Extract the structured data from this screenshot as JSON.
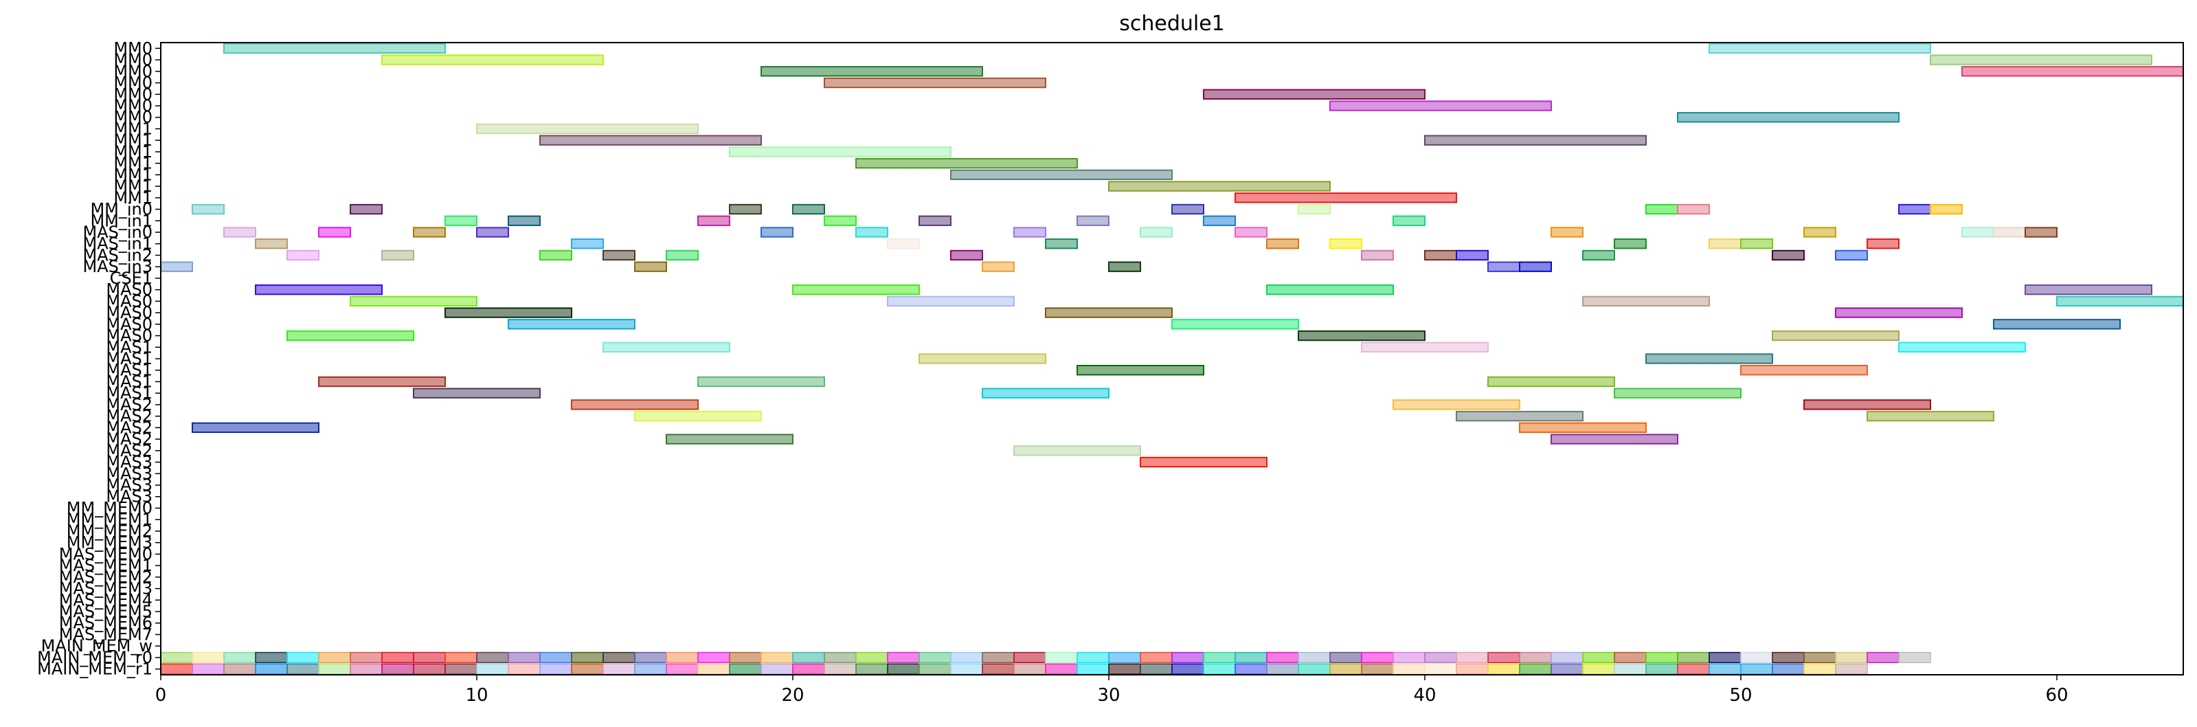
{
  "chart_data": {
    "type": "gantt",
    "title": "schedule1",
    "xlabel": "",
    "ylabel": "",
    "xlim": [
      0,
      64
    ],
    "x_ticks": [
      0,
      10,
      20,
      30,
      40,
      50,
      60
    ],
    "grid": false,
    "rows": [
      "MM0",
      "MM0",
      "MM0",
      "MM0",
      "MM0",
      "MM0",
      "MM0",
      "MM1",
      "MM1",
      "MM1",
      "MM1",
      "MM1",
      "MM1",
      "MM1",
      "MM_in0",
      "MM_in1",
      "MAS_in0",
      "MAS_in1",
      "MAS_in2",
      "MAS_in3",
      "CSE1",
      "MAS0",
      "MAS0",
      "MAS0",
      "MAS0",
      "MAS0",
      "MAS1",
      "MAS1",
      "MAS1",
      "MAS1",
      "MAS1",
      "MAS2",
      "MAS2",
      "MAS2",
      "MAS2",
      "MAS2",
      "MAS3",
      "MAS3",
      "MAS3",
      "MAS3",
      "MM_MEM0",
      "MM_MEM1",
      "MM_MEM2",
      "MM_MEM3",
      "MAS_MEM0",
      "MAS_MEM1",
      "MAS_MEM2",
      "MAS_MEM3",
      "MAS_MEM4",
      "MAS_MEM5",
      "MAS_MEM6",
      "MAS_MEM7",
      "MAIN_MEM_w",
      "MAIN_MEM_r0",
      "MAIN_MEM_r1"
    ],
    "tasks": [
      {
        "row": 0,
        "start": 2,
        "end": 9,
        "color": "#48c9b0"
      },
      {
        "row": 0,
        "start": 49,
        "end": 56,
        "color": "#5fd3d8"
      },
      {
        "row": 1,
        "start": 7,
        "end": 14,
        "color": "#b8f01f"
      },
      {
        "row": 1,
        "start": 56,
        "end": 63,
        "color": "#97cf78"
      },
      {
        "row": 2,
        "start": 19,
        "end": 26,
        "color": "#1e7a2e"
      },
      {
        "row": 2,
        "start": 57,
        "end": 64,
        "color": "#e0386e"
      },
      {
        "row": 3,
        "start": 21,
        "end": 28,
        "color": "#a3522f"
      },
      {
        "row": 4,
        "start": 33,
        "end": 40,
        "color": "#7a0e4e"
      },
      {
        "row": 5,
        "start": 37,
        "end": 44,
        "color": "#b52bc7"
      },
      {
        "row": 6,
        "start": 48,
        "end": 55,
        "color": "#1a8a9a"
      },
      {
        "row": 7,
        "start": 10,
        "end": 17,
        "color": "#c8dca2"
      },
      {
        "row": 8,
        "start": 12,
        "end": 19,
        "color": "#724967"
      },
      {
        "row": 8,
        "start": 40,
        "end": 47,
        "color": "#5e4a68"
      },
      {
        "row": 9,
        "start": 18,
        "end": 25,
        "color": "#a5f4ad"
      },
      {
        "row": 10,
        "start": 22,
        "end": 29,
        "color": "#4a9a1c"
      },
      {
        "row": 11,
        "start": 25,
        "end": 32,
        "color": "#56807c"
      },
      {
        "row": 12,
        "start": 30,
        "end": 37,
        "color": "#8a9a2a"
      },
      {
        "row": 13,
        "start": 34,
        "end": 41,
        "color": "#e31818"
      },
      {
        "row": 14,
        "start": 1,
        "end": 2,
        "color": "#6acaca"
      },
      {
        "row": 14,
        "start": 6,
        "end": 7,
        "color": "#5a1a5a"
      },
      {
        "row": 14,
        "start": 18,
        "end": 19,
        "color": "#2e3e1e"
      },
      {
        "row": 14,
        "start": 20,
        "end": 21,
        "color": "#0e6a4a"
      },
      {
        "row": 14,
        "start": 32,
        "end": 33,
        "color": "#3030a8"
      },
      {
        "row": 14,
        "start": 36,
        "end": 37,
        "color": "#c8f5a2"
      },
      {
        "row": 14,
        "start": 47,
        "end": 48,
        "color": "#24e024"
      },
      {
        "row": 14,
        "start": 48,
        "end": 49,
        "color": "#e87890"
      },
      {
        "row": 14,
        "start": 55,
        "end": 56,
        "color": "#2a1ae0"
      },
      {
        "row": 14,
        "start": 56,
        "end": 57,
        "color": "#ffb800"
      },
      {
        "row": 15,
        "start": 9,
        "end": 10,
        "color": "#2cea64"
      },
      {
        "row": 15,
        "start": 11,
        "end": 12,
        "color": "#0a5a7a"
      },
      {
        "row": 15,
        "start": 17,
        "end": 18,
        "color": "#c8209a"
      },
      {
        "row": 15,
        "start": 21,
        "end": 22,
        "color": "#3ae82a"
      },
      {
        "row": 15,
        "start": 24,
        "end": 25,
        "color": "#5a3a7a"
      },
      {
        "row": 15,
        "start": 29,
        "end": 30,
        "color": "#7a7ab8"
      },
      {
        "row": 15,
        "start": 33,
        "end": 34,
        "color": "#1a7ad8"
      },
      {
        "row": 15,
        "start": 39,
        "end": 40,
        "color": "#1ad878"
      },
      {
        "row": 16,
        "start": 2,
        "end": 3,
        "color": "#d8a8e0"
      },
      {
        "row": 16,
        "start": 5,
        "end": 6,
        "color": "#f010f0"
      },
      {
        "row": 16,
        "start": 8,
        "end": 9,
        "color": "#a87a0a"
      },
      {
        "row": 16,
        "start": 10,
        "end": 11,
        "color": "#4a2ac8"
      },
      {
        "row": 16,
        "start": 19,
        "end": 20,
        "color": "#2a6ac8"
      },
      {
        "row": 16,
        "start": 22,
        "end": 23,
        "color": "#2ad8d8"
      },
      {
        "row": 16,
        "start": 27,
        "end": 28,
        "color": "#9a7ae8"
      },
      {
        "row": 16,
        "start": 31,
        "end": 32,
        "color": "#9af0c8"
      },
      {
        "row": 16,
        "start": 34,
        "end": 35,
        "color": "#e860c8"
      },
      {
        "row": 16,
        "start": 44,
        "end": 45,
        "color": "#f09010"
      },
      {
        "row": 16,
        "start": 52,
        "end": 53,
        "color": "#c8a000"
      },
      {
        "row": 16,
        "start": 57,
        "end": 58,
        "color": "#a8f0d8"
      },
      {
        "row": 16,
        "start": 58,
        "end": 59,
        "color": "#e8d8c8"
      },
      {
        "row": 16,
        "start": 59,
        "end": 60,
        "color": "#8a3a1a"
      },
      {
        "row": 17,
        "start": 3,
        "end": 4,
        "color": "#b89a6a"
      },
      {
        "row": 17,
        "start": 13,
        "end": 14,
        "color": "#2aa8e8"
      },
      {
        "row": 17,
        "start": 23,
        "end": 24,
        "color": "#f8e8e0"
      },
      {
        "row": 17,
        "start": 28,
        "end": 29,
        "color": "#1a8a5a"
      },
      {
        "row": 17,
        "start": 35,
        "end": 36,
        "color": "#d8780a"
      },
      {
        "row": 17,
        "start": 37,
        "end": 38,
        "color": "#f8f010"
      },
      {
        "row": 17,
        "start": 46,
        "end": 47,
        "color": "#1a8a2a"
      },
      {
        "row": 17,
        "start": 49,
        "end": 50,
        "color": "#f0d060"
      },
      {
        "row": 17,
        "start": 50,
        "end": 51,
        "color": "#7ac81a"
      },
      {
        "row": 17,
        "start": 54,
        "end": 55,
        "color": "#e01a1a"
      },
      {
        "row": 18,
        "start": 4,
        "end": 5,
        "color": "#e8a0f8"
      },
      {
        "row": 18,
        "start": 7,
        "end": 8,
        "color": "#a8b88a"
      },
      {
        "row": 18,
        "start": 12,
        "end": 13,
        "color": "#3ad81a"
      },
      {
        "row": 18,
        "start": 14,
        "end": 15,
        "color": "#4a3a2a"
      },
      {
        "row": 18,
        "start": 16,
        "end": 17,
        "color": "#2ad858"
      },
      {
        "row": 18,
        "start": 25,
        "end": 26,
        "color": "#8a0a7a"
      },
      {
        "row": 18,
        "start": 38,
        "end": 39,
        "color": "#c878a8"
      },
      {
        "row": 18,
        "start": 40,
        "end": 41,
        "color": "#7a2a1a"
      },
      {
        "row": 18,
        "start": 41,
        "end": 42,
        "color": "#2a0ad8"
      },
      {
        "row": 18,
        "start": 45,
        "end": 46,
        "color": "#1a9a4a"
      },
      {
        "row": 18,
        "start": 51,
        "end": 52,
        "color": "#3a0a2a"
      },
      {
        "row": 18,
        "start": 53,
        "end": 54,
        "color": "#2a5ae8"
      },
      {
        "row": 19,
        "start": 0,
        "end": 1,
        "color": "#7aa0d8"
      },
      {
        "row": 19,
        "start": 15,
        "end": 16,
        "color": "#8a6a0a"
      },
      {
        "row": 19,
        "start": 26,
        "end": 27,
        "color": "#f0a030"
      },
      {
        "row": 19,
        "start": 30,
        "end": 31,
        "color": "#0a3a0a"
      },
      {
        "row": 19,
        "start": 42,
        "end": 43,
        "color": "#3a3ad8"
      },
      {
        "row": 19,
        "start": 43,
        "end": 44,
        "color": "#0a0ac8"
      },
      {
        "row": 21,
        "start": 3,
        "end": 7,
        "color": "#3a0ae0"
      },
      {
        "row": 21,
        "start": 20,
        "end": 24,
        "color": "#4ae81a"
      },
      {
        "row": 21,
        "start": 35,
        "end": 39,
        "color": "#0ad858"
      },
      {
        "row": 21,
        "start": 59,
        "end": 63,
        "color": "#6a4a9a"
      },
      {
        "row": 22,
        "start": 6,
        "end": 10,
        "color": "#7ae81a"
      },
      {
        "row": 22,
        "start": 23,
        "end": 27,
        "color": "#a8b8f0"
      },
      {
        "row": 22,
        "start": 45,
        "end": 49,
        "color": "#b89a8a"
      },
      {
        "row": 22,
        "start": 60,
        "end": 64,
        "color": "#2ac8b8"
      },
      {
        "row": 23,
        "start": 9,
        "end": 13,
        "color": "#0a2a0a"
      },
      {
        "row": 23,
        "start": 28,
        "end": 32,
        "color": "#7a5a0a"
      },
      {
        "row": 23,
        "start": 53,
        "end": 57,
        "color": "#a80ab8"
      },
      {
        "row": 24,
        "start": 11,
        "end": 15,
        "color": "#0aa8d8"
      },
      {
        "row": 24,
        "start": 32,
        "end": 36,
        "color": "#1af078"
      },
      {
        "row": 24,
        "start": 58,
        "end": 62,
        "color": "#0a5a9a"
      },
      {
        "row": 25,
        "start": 4,
        "end": 8,
        "color": "#3ae81a"
      },
      {
        "row": 25,
        "start": 36,
        "end": 40,
        "color": "#0a3a0a"
      },
      {
        "row": 25,
        "start": 51,
        "end": 55,
        "color": "#a8a84a"
      },
      {
        "row": 26,
        "start": 14,
        "end": 18,
        "color": "#7ae8d8"
      },
      {
        "row": 26,
        "start": 38,
        "end": 42,
        "color": "#e8b8d8"
      },
      {
        "row": 26,
        "start": 55,
        "end": 59,
        "color": "#1af0f0"
      },
      {
        "row": 27,
        "start": 24,
        "end": 28,
        "color": "#c8c85a"
      },
      {
        "row": 27,
        "start": 47,
        "end": 51,
        "color": "#2a7a7a"
      },
      {
        "row": 28,
        "start": 29,
        "end": 33,
        "color": "#0a6a0a"
      },
      {
        "row": 28,
        "start": 50,
        "end": 54,
        "color": "#e8602a"
      },
      {
        "row": 29,
        "start": 5,
        "end": 9,
        "color": "#a82a1a"
      },
      {
        "row": 29,
        "start": 17,
        "end": 21,
        "color": "#5ab87a"
      },
      {
        "row": 29,
        "start": 42,
        "end": 46,
        "color": "#7ab81a"
      },
      {
        "row": 30,
        "start": 8,
        "end": 12,
        "color": "#4a3a5a"
      },
      {
        "row": 30,
        "start": 26,
        "end": 30,
        "color": "#0ac8d8"
      },
      {
        "row": 30,
        "start": 46,
        "end": 50,
        "color": "#3ac83a"
      },
      {
        "row": 31,
        "start": 13,
        "end": 17,
        "color": "#c83a1a"
      },
      {
        "row": 31,
        "start": 39,
        "end": 43,
        "color": "#f8b840"
      },
      {
        "row": 31,
        "start": 52,
        "end": 56,
        "color": "#a80a1a"
      },
      {
        "row": 32,
        "start": 15,
        "end": 19,
        "color": "#d8f848"
      },
      {
        "row": 32,
        "start": 41,
        "end": 45,
        "color": "#6a7a7a"
      },
      {
        "row": 32,
        "start": 54,
        "end": 58,
        "color": "#9aa82a"
      },
      {
        "row": 33,
        "start": 1,
        "end": 5,
        "color": "#0a2aa8"
      },
      {
        "row": 33,
        "start": 43,
        "end": 47,
        "color": "#f0680a"
      },
      {
        "row": 34,
        "start": 16,
        "end": 20,
        "color": "#3a7a3a"
      },
      {
        "row": 34,
        "start": 44,
        "end": 48,
        "color": "#8a2a9a"
      },
      {
        "row": 35,
        "start": 27,
        "end": 31,
        "color": "#b8d8a8"
      },
      {
        "row": 36,
        "start": 31,
        "end": 35,
        "color": "#f01a0a"
      }
    ],
    "memory_rows": {
      "MAIN_MEM_r0": [
        "#9ad860",
        "#f8e890",
        "#7ae0a8",
        "#0a3a4a",
        "#10e8f8",
        "#f0a040",
        "#d85050",
        "#e8101a",
        "#d8102a",
        "#f8401a",
        "#5a3a4a",
        "#8a5ab8",
        "#3a7ae8",
        "#4a5a0a",
        "#3a2a1a",
        "#5a5aa8",
        "#f8905a",
        "#f81af8",
        "#b8602a",
        "#f8b850",
        "#3ab8a8",
        "#7a9a6a",
        "#88d820",
        "#e820d8",
        "#58c888",
        "#98c8f8",
        "#8a5a4a",
        "#b8102a",
        "#a8f8c8",
        "#10e8e8",
        "#2aa8f8",
        "#f8402a",
        "#a81ae8",
        "#28d898",
        "#18b8a8",
        "#e810c8",
        "#a8b8d8",
        "#5a4a8a",
        "#f810d8",
        "#d880e8",
        "#b870c8",
        "#e8a0b8",
        "#d8204a",
        "#c87888",
        "#a8a8e8",
        "#70d808",
        "#b8502a",
        "#5ad808",
        "#5aa81a",
        "#0a0a5a",
        "#d8d8e8",
        "#4a1a1a",
        "#7a5a1a",
        "#d8c878",
        "#c820c8",
        "#b8b8b8"
      ],
      "MAIN_MEM_r1": [
        "#f81a1a",
        "#d870e8",
        "#b87878",
        "#0a88e8",
        "#3a7a8a",
        "#a8e888",
        "#d870a8",
        "#b8107a",
        "#b8103a",
        "#7a2a3a",
        "#98d8e8",
        "#f8a0a0",
        "#9a9af8",
        "#b85a1a",
        "#d8a8d8",
        "#6a9ae8",
        "#f840c8",
        "#f8c888",
        "#1a8a4a",
        "#b8a0e8",
        "#f810a8",
        "#c8a8a8",
        "#4a8a4a",
        "#0a3a1a",
        "#5aa85a",
        "#98d8f8",
        "#a81a1a",
        "#c88888",
        "#f81ab8",
        "#0ae8f8",
        "#3a0a0a",
        "#2a4a4a",
        "#0a0ab8",
        "#18e8d8",
        "#3a4af8",
        "#7a8ab8",
        "#1ad8b8",
        "#c8a820",
        "#a86a2a",
        "#f8d8a8",
        "#f8e8c8",
        "#f8a080",
        "#f8d820",
        "#3aa818",
        "#5a5ab8",
        "#d8e820",
        "#a8d8d8",
        "#2ab88a",
        "#e82a3a",
        "#2aa8e8",
        "#1aa8e8",
        "#2a6ad8",
        "#f8d860",
        "#c8a8a8"
      ]
    },
    "memory_row_range": [
      0,
      60
    ]
  }
}
